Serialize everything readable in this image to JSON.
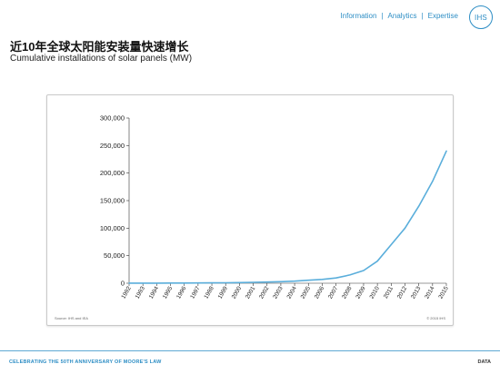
{
  "nav": {
    "items": [
      "Information",
      "Analytics",
      "Expertise"
    ],
    "separator": "|",
    "logo": "IHS"
  },
  "header": {
    "title_zh": "近10年全球太阳能安装量快速增长",
    "title_en": "Cumulative installations of solar panels (MW)"
  },
  "chart_data": {
    "type": "line",
    "x": [
      "1992",
      "1993",
      "1994",
      "1995",
      "1996",
      "1997",
      "1998",
      "1999",
      "2000",
      "2001",
      "2002",
      "2003",
      "2004",
      "2005",
      "2006",
      "2007",
      "2008",
      "2009",
      "2010",
      "2011",
      "2012",
      "2013",
      "2014",
      "2015"
    ],
    "series": [
      {
        "values": [
          100,
          150,
          200,
          300,
          400,
          500,
          700,
          900,
          1200,
          1600,
          2100,
          2800,
          3800,
          5400,
          7000,
          9500,
          15000,
          23000,
          40000,
          70000,
          100000,
          140000,
          185000,
          240000
        ]
      }
    ],
    "yticks": [
      "0",
      "50,000",
      "100,000",
      "150,000",
      "200,000",
      "250,000",
      "300,000"
    ],
    "ylim": [
      0,
      300000
    ],
    "grid": false,
    "line_color": "#5aaedb"
  },
  "source_note": "Source: IHS and IEA",
  "copyright": "© 2015 IHS",
  "footer": {
    "celebrate": "CELEBRATING THE 50TH ANNIVERSARY OF MOORE'S LAW",
    "section": "DATA"
  }
}
